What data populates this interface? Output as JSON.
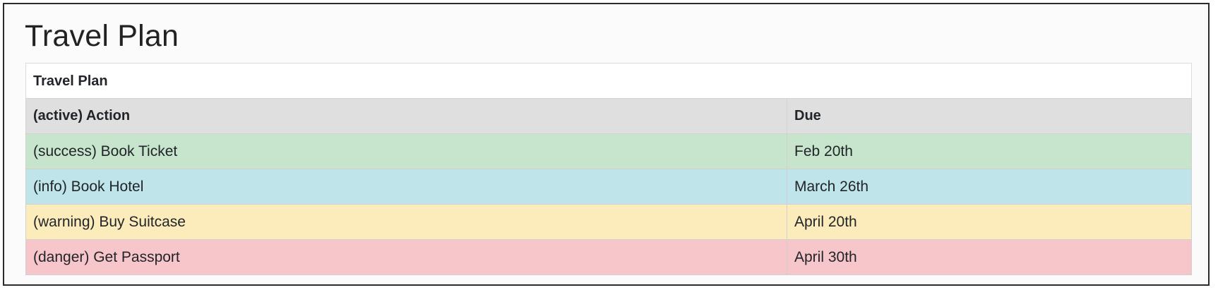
{
  "page": {
    "title": "Travel Plan"
  },
  "table": {
    "caption": "Travel Plan",
    "headers": [
      "(active) Action",
      "Due"
    ],
    "header_color": "#dfdfdf",
    "rows": [
      {
        "action": "(success) Book Ticket",
        "due": "Feb 20th",
        "status": "success",
        "color": "#c7e5cc"
      },
      {
        "action": "(info) Book Hotel",
        "due": "March 26th",
        "status": "info",
        "color": "#bfe5eb"
      },
      {
        "action": "(warning) Buy Suitcase",
        "due": "April 20th",
        "status": "warning",
        "color": "#fcecbc"
      },
      {
        "action": "(danger) Get Passport",
        "due": "April 30th",
        "status": "danger",
        "color": "#f6c6ca"
      }
    ]
  }
}
